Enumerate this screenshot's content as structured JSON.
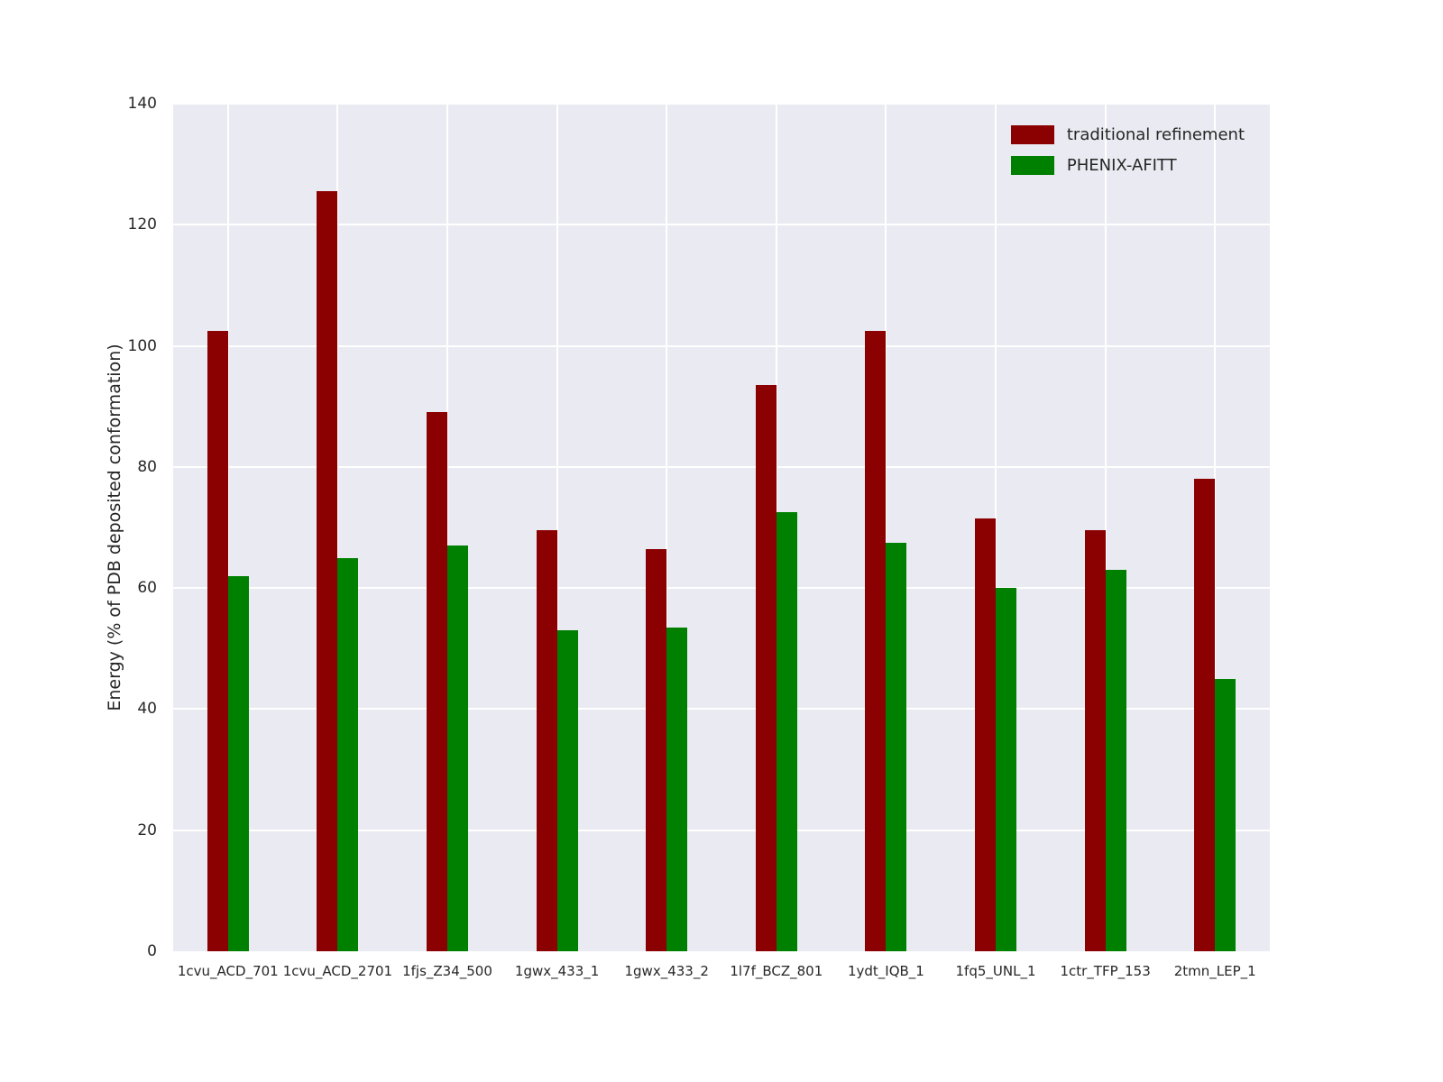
{
  "chart_data": {
    "type": "bar",
    "title": "",
    "xlabel": "",
    "ylabel": "Energy (% of PDB deposited conformation)",
    "ylim": [
      0,
      140
    ],
    "yticks": [
      0,
      20,
      40,
      60,
      80,
      100,
      120,
      140
    ],
    "grid": true,
    "legend_position": "upper right",
    "categories": [
      "1cvu_ACD_701",
      "1cvu_ACD_2701",
      "1fjs_Z34_500",
      "1gwx_433_1",
      "1gwx_433_2",
      "1l7f_BCZ_801",
      "1ydt_IQB_1",
      "1fq5_UNL_1",
      "1ctr_TFP_153",
      "2tmn_LEP_1"
    ],
    "series": [
      {
        "name": "traditional refinement",
        "color": "#8b0000",
        "values": [
          102.5,
          125.5,
          89.0,
          69.5,
          66.5,
          93.5,
          102.5,
          71.5,
          69.5,
          78.0
        ]
      },
      {
        "name": "PHENIX-AFITT",
        "color": "#008000",
        "values": [
          62.0,
          65.0,
          67.0,
          53.0,
          53.5,
          72.5,
          67.5,
          60.0,
          63.0,
          45.0
        ]
      }
    ],
    "colors": {
      "plot_background": "#eaeaf2",
      "gridline": "#ffffff",
      "text": "#262626"
    }
  }
}
